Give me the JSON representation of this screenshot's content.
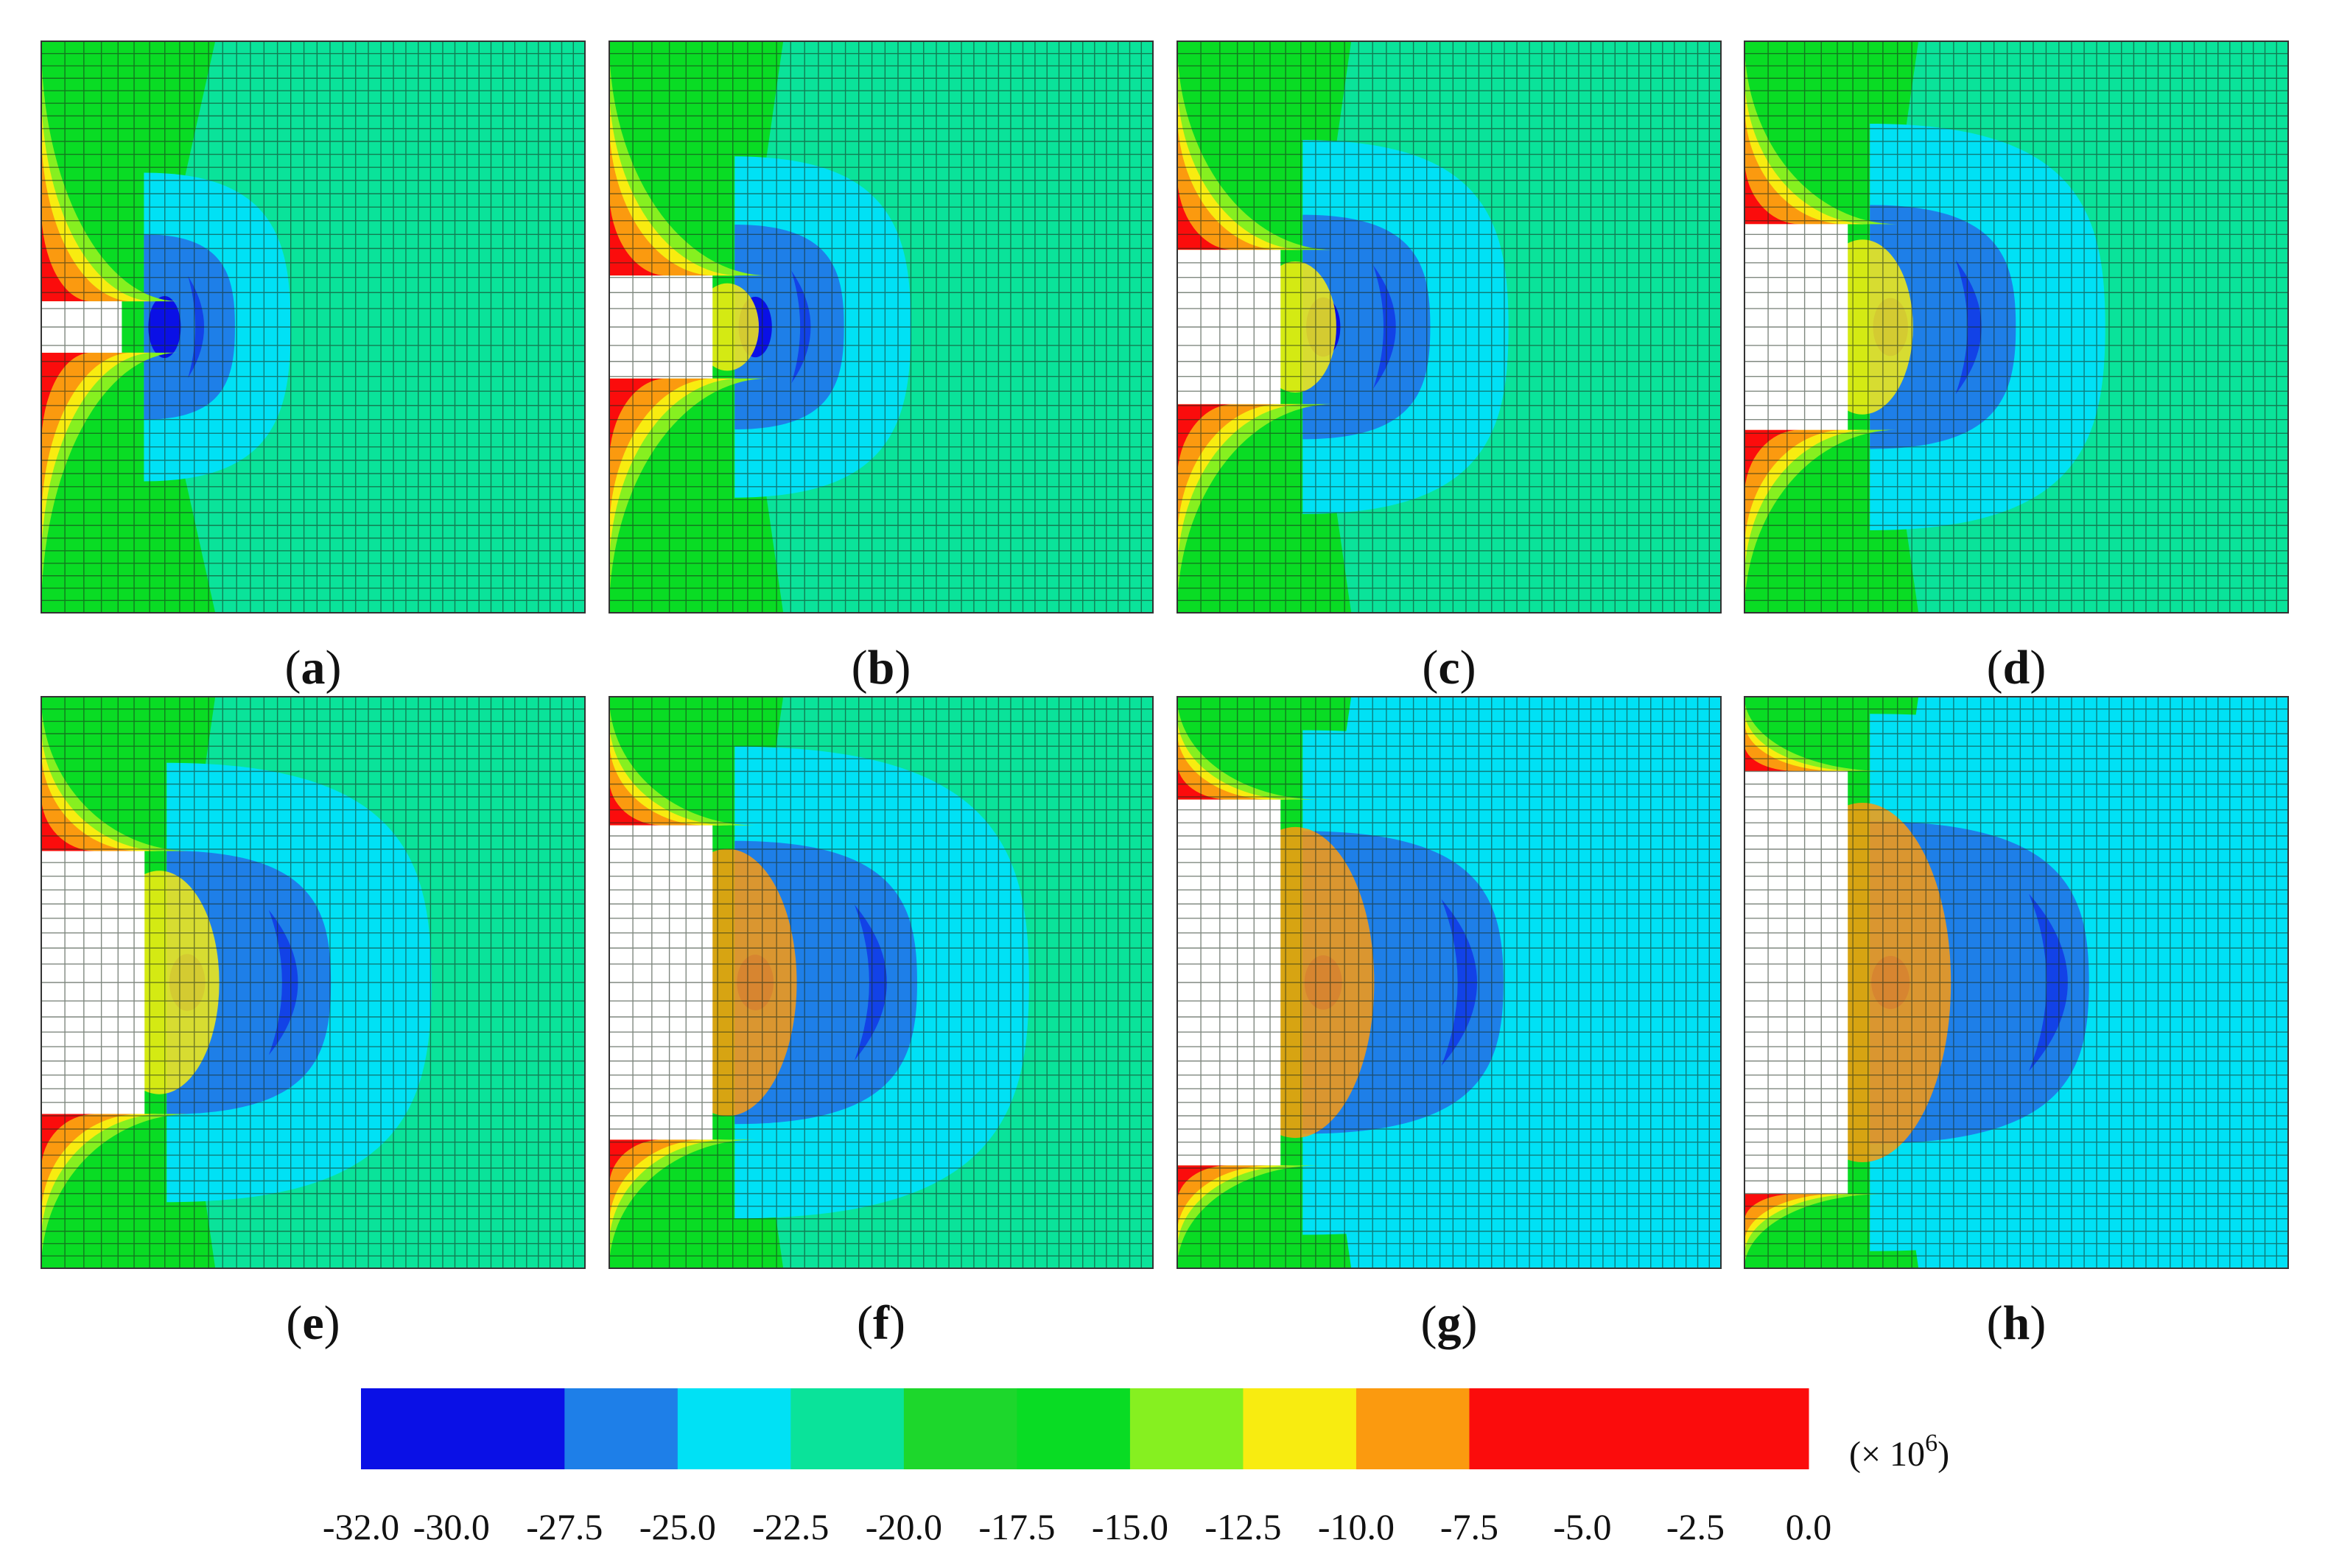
{
  "chart_data": {
    "type": "heatmap",
    "title": "",
    "panels": [
      {
        "label_letter": "a",
        "label_open": "(",
        "label_close": ")",
        "excavation_height": 0.09,
        "excavation_depth": 0.19,
        "max_stress_mpa": -32.0,
        "min_stress_mpa": -5.0
      },
      {
        "label_letter": "b",
        "label_open": "(",
        "label_close": ")",
        "excavation_height": 0.18,
        "excavation_depth": 0.19,
        "max_stress_mpa": -32.0,
        "min_stress_mpa": -5.0
      },
      {
        "label_letter": "c",
        "label_open": "(",
        "label_close": ")",
        "excavation_height": 0.27,
        "excavation_depth": 0.19,
        "max_stress_mpa": -32.0,
        "min_stress_mpa": -5.0
      },
      {
        "label_letter": "d",
        "label_open": "(",
        "label_close": ")",
        "excavation_height": 0.36,
        "excavation_depth": 0.19,
        "max_stress_mpa": -32.0,
        "min_stress_mpa": -5.0
      },
      {
        "label_letter": "e",
        "label_open": "(",
        "label_close": ")",
        "excavation_height": 0.46,
        "excavation_depth": 0.19,
        "max_stress_mpa": -32.0,
        "min_stress_mpa": -5.0
      },
      {
        "label_letter": "f",
        "label_open": "(",
        "label_close": ")",
        "excavation_height": 0.55,
        "excavation_depth": 0.19,
        "max_stress_mpa": -32.0,
        "min_stress_mpa": -5.0
      },
      {
        "label_letter": "g",
        "label_open": "(",
        "label_close": ")",
        "excavation_height": 0.64,
        "excavation_depth": 0.19,
        "max_stress_mpa": -32.0,
        "min_stress_mpa": -5.0
      },
      {
        "label_letter": "h",
        "label_open": "(",
        "label_close": ")",
        "excavation_height": 0.74,
        "excavation_depth": 0.19,
        "max_stress_mpa": -32.0,
        "min_stress_mpa": -5.0
      }
    ],
    "colorbar": {
      "tick_labels": [
        "-32.0",
        "-30.0",
        "-27.5",
        "-25.0",
        "-22.5",
        "-20.0",
        "-17.5",
        "-15.0",
        "-12.5",
        "-10.0",
        "-7.5",
        "-5.0",
        "-2.5",
        "0.0"
      ],
      "ticks": [
        -32.0,
        -30.0,
        -27.5,
        -25.0,
        -22.5,
        -20.0,
        -17.5,
        -15.0,
        -12.5,
        -10.0,
        -7.5,
        -5.0,
        -2.5,
        0.0
      ],
      "levels": [
        {
          "from": -32.0,
          "to": -27.5,
          "color": "#0a10e6"
        },
        {
          "from": -27.5,
          "to": -25.0,
          "color": "#1e7fe8"
        },
        {
          "from": -25.0,
          "to": -22.5,
          "color": "#00e1f5"
        },
        {
          "from": -22.5,
          "to": -20.0,
          "color": "#0ae39a"
        },
        {
          "from": -20.0,
          "to": -17.5,
          "color": "#1dd72c"
        },
        {
          "from": -17.5,
          "to": -15.0,
          "color": "#09dc24"
        },
        {
          "from": -15.0,
          "to": -12.5,
          "color": "#86f020"
        },
        {
          "from": -12.5,
          "to": -10.0,
          "color": "#f8ec10"
        },
        {
          "from": -10.0,
          "to": -7.5,
          "color": "#fb9a0f"
        },
        {
          "from": -7.5,
          "to": 0.0,
          "color": "#fb0c0c"
        }
      ],
      "unit_prefix": "(× 10",
      "unit_exponent": "6",
      "unit_suffix": ")"
    }
  }
}
